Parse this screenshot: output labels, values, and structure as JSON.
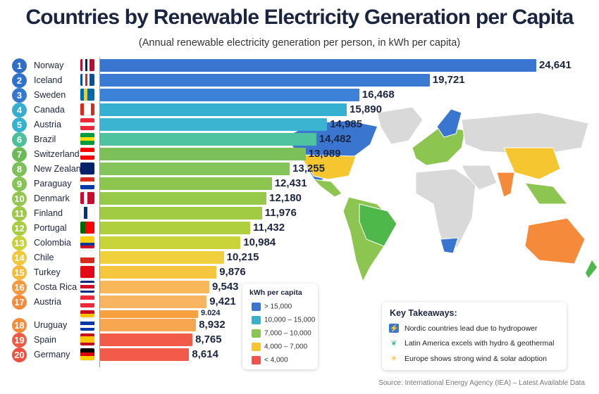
{
  "chart_data": {
    "type": "bar",
    "orientation": "horizontal",
    "title": "Countries by Renewable Electricity Generation per Capita",
    "subtitle": "(Annual renewable electricity generation per person, in kWh per capita)",
    "xlim": [
      4500,
      25000
    ],
    "grid": false,
    "rows": [
      {
        "rank": "1",
        "country": "Norway",
        "value": 24641,
        "label": "24,641",
        "color": "#3a76d0",
        "flag": {
          "dir": "v",
          "colors": [
            "#ba0c2f",
            "#fff",
            "#00205b",
            "#fff",
            "#ba0c2f",
            "#ba0c2f"
          ]
        }
      },
      {
        "rank": "2",
        "country": "Iceland",
        "value": 19721,
        "label": "19,721",
        "color": "#3a7ad3",
        "flag": {
          "dir": "v",
          "colors": [
            "#02529c",
            "#fff",
            "#dc1e35",
            "#fff",
            "#02529c",
            "#02529c"
          ]
        }
      },
      {
        "rank": "3",
        "country": "Sweden",
        "value": 16468,
        "label": "16,468",
        "color": "#3b82d8",
        "flag": {
          "dir": "v",
          "colors": [
            "#006aa7",
            "#fecc00",
            "#006aa7",
            "#006aa7"
          ]
        }
      },
      {
        "rank": "4",
        "country": "Canada",
        "value": 15890,
        "label": "15,890",
        "color": "#36b0d0",
        "flag": {
          "dir": "v",
          "colors": [
            "#d52b1e",
            "#fff",
            "#fff",
            "#d52b1e"
          ]
        }
      },
      {
        "rank": "5",
        "country": "Austria",
        "value": 14985,
        "label": "14,985",
        "color": "#3ab4d0",
        "flag": {
          "dir": "h",
          "colors": [
            "#ed2939",
            "#fff",
            "#ed2939"
          ]
        }
      },
      {
        "rank": "6",
        "country": "Brazil",
        "value": 14482,
        "label": "14,482",
        "color": "#4fc2a0",
        "flag": {
          "dir": "h",
          "colors": [
            "#009c3b",
            "#ffdf00",
            "#009c3b"
          ]
        }
      },
      {
        "rank": "7",
        "country": "Switzerland",
        "value": 13989,
        "label": "13,989",
        "color": "#7cc05a",
        "flag": {
          "dir": "h",
          "colors": [
            "#ff0000",
            "#fff",
            "#ff0000"
          ]
        }
      },
      {
        "rank": "8",
        "country": "New Zealand",
        "value": 13255,
        "label": "13,255",
        "color": "#84c45a",
        "flag": {
          "dir": "h",
          "colors": [
            "#012169",
            "#012169"
          ]
        }
      },
      {
        "rank": "9",
        "country": "Paraguay",
        "value": 12431,
        "label": "12,431",
        "color": "#8cc650",
        "flag": {
          "dir": "h",
          "colors": [
            "#d52b1e",
            "#fff",
            "#0038a8"
          ]
        }
      },
      {
        "rank": "10",
        "country": "Denmark",
        "value": 12180,
        "label": "12,180",
        "color": "#96c84a",
        "flag": {
          "dir": "v",
          "colors": [
            "#c60c30",
            "#fff",
            "#c60c30",
            "#c60c30"
          ]
        }
      },
      {
        "rank": "11",
        "country": "Finland",
        "value": 11976,
        "label": "11,976",
        "color": "#a2cb44",
        "flag": {
          "dir": "v",
          "colors": [
            "#fff",
            "#003580",
            "#fff",
            "#fff"
          ]
        }
      },
      {
        "rank": "12",
        "country": "Portugal",
        "value": 11432,
        "label": "11,432",
        "color": "#b0cf3e",
        "flag": {
          "dir": "v",
          "colors": [
            "#006600",
            "#ff0000",
            "#ff0000"
          ]
        }
      },
      {
        "rank": "13",
        "country": "Colombia",
        "value": 10984,
        "label": "10,984",
        "color": "#c8d43a",
        "flag": {
          "dir": "h",
          "colors": [
            "#fcd116",
            "#fcd116",
            "#003893",
            "#ce1126"
          ]
        }
      },
      {
        "rank": "14",
        "country": "Chile",
        "value": 10215,
        "label": "10,215",
        "color": "#f0d03c",
        "flag": {
          "dir": "h",
          "colors": [
            "#fff",
            "#d52b1e"
          ]
        }
      },
      {
        "rank": "15",
        "country": "Turkey",
        "value": 9876,
        "label": "9,876",
        "color": "#f6c63e",
        "flag": {
          "dir": "h",
          "colors": [
            "#e30a17"
          ]
        }
      },
      {
        "rank": "16",
        "country": "Costa Rica",
        "value": 9543,
        "label": "9,543",
        "color": "#f8b85a",
        "flag": {
          "dir": "h",
          "colors": [
            "#002b7f",
            "#fff",
            "#ce1126",
            "#ce1126",
            "#fff",
            "#002b7f"
          ]
        }
      },
      {
        "rank": "17",
        "country": "Austria",
        "value": 9421,
        "label": "9,421",
        "color": "#f8b460",
        "flag": {
          "dir": "h",
          "colors": [
            "#ed2939",
            "#fff",
            "#ed2939"
          ]
        }
      },
      {
        "rank": "",
        "country": "",
        "value": 9024,
        "label": "9.024",
        "color": "#f6a040",
        "flag": {
          "dir": "h",
          "colors": [
            "#c60b1e",
            "#ffc400"
          ]
        }
      },
      {
        "rank": "18",
        "country": "Uruguay",
        "value": 8932,
        "label": "8,932",
        "color": "#f8a650",
        "flag": {
          "dir": "h",
          "colors": [
            "#fff",
            "#0038a8",
            "#fff",
            "#0038a8"
          ]
        }
      },
      {
        "rank": "19",
        "country": "Spain",
        "value": 8765,
        "label": "8,765",
        "color": "#f25a4a",
        "flag": {
          "dir": "h",
          "colors": [
            "#c60b1e",
            "#ffc400",
            "#ffc400",
            "#c60b1e"
          ]
        }
      },
      {
        "rank": "20",
        "country": "Germany",
        "value": 8614,
        "label": "8,614",
        "color": "#f25a4a",
        "flag": {
          "dir": "h",
          "colors": [
            "#000",
            "#dd0000",
            "#ffce00"
          ]
        }
      }
    ]
  },
  "legend": {
    "title": "kWh per capita",
    "items": [
      {
        "label": "> 15,000",
        "color": "#3a76d0"
      },
      {
        "label": "10,000 – 15,000",
        "color": "#38b2c8"
      },
      {
        "label": "7,000 – 10,000",
        "color": "#8cc650"
      },
      {
        "label": "4,000 – 7,000",
        "color": "#f6c630"
      },
      {
        "label": "< 4,000",
        "color": "#f2504a"
      }
    ]
  },
  "takeaways": {
    "title": "Key Takeaways:",
    "items": [
      {
        "icon": "lightning-icon",
        "text": "Nordic countries lead due to hydropower"
      },
      {
        "icon": "leaf-icon",
        "text": "Latin America excels with hydro & geothermal"
      },
      {
        "icon": "sun-icon",
        "text": "Europe shows strong wind & solar adoption"
      }
    ]
  },
  "source": "Source: International Energy Agency (IEA) – Latest Available Data"
}
